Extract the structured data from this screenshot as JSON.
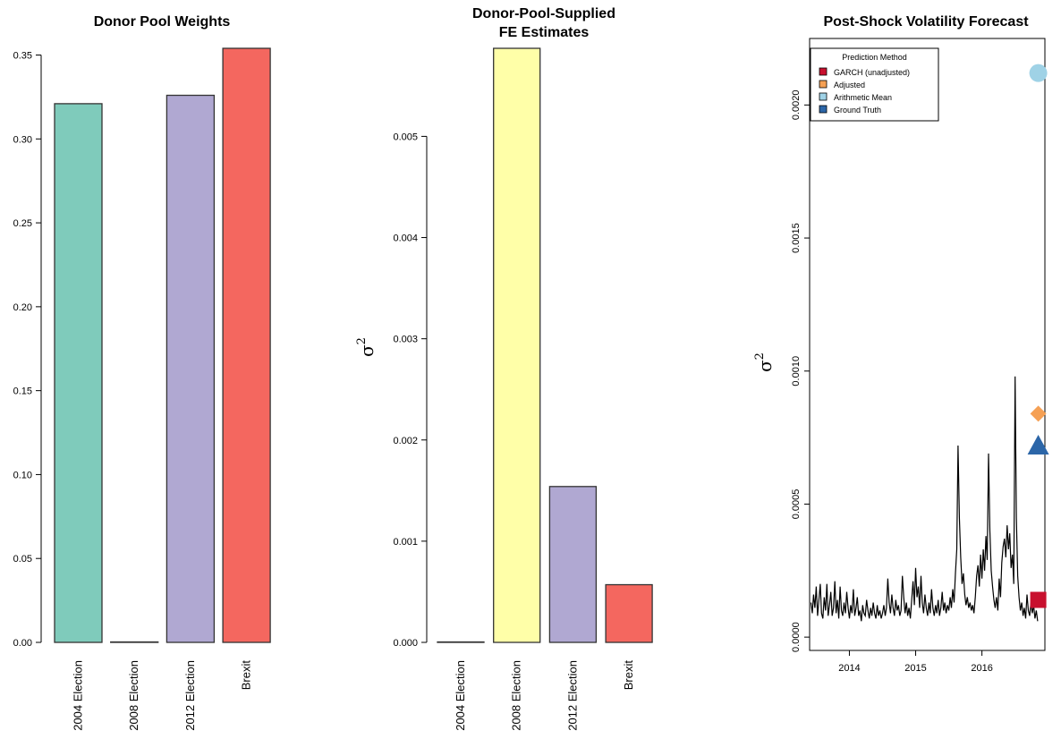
{
  "chart_data": [
    {
      "type": "bar",
      "title": "Donor Pool Weights",
      "categories": [
        "2004 Election",
        "2008 Election",
        "2012 Election",
        "Brexit"
      ],
      "values": [
        0.321,
        0.0,
        0.326,
        0.354
      ],
      "colors": [
        "#7fcbbb",
        "#ffffa8",
        "#b0a8d2",
        "#f4675f"
      ],
      "ylim": [
        0,
        0.354
      ],
      "yticks": [
        "0.00",
        "0.05",
        "0.10",
        "0.15",
        "0.20",
        "0.25",
        "0.30",
        "0.35"
      ],
      "xlabel": "",
      "ylabel": ""
    },
    {
      "type": "bar",
      "title_lines": [
        "Donor-Pool-Supplied",
        "FE Estimates"
      ],
      "categories": [
        "2004 Election",
        "2008 Election",
        "2012 Election",
        "Brexit"
      ],
      "values": [
        0.0,
        0.00587,
        0.00154,
        0.00057
      ],
      "colors": [
        "#7fcbbb",
        "#ffffa8",
        "#b0a8d2",
        "#f4675f"
      ],
      "ylim": [
        0,
        0.00587
      ],
      "yticks": [
        "0.000",
        "0.001",
        "0.002",
        "0.003",
        "0.004",
        "0.005"
      ],
      "ylabel": "σ",
      "ylabel_sup": "2"
    },
    {
      "type": "line",
      "title": "Post-Shock Volatility Forecast",
      "ylabel": "σ",
      "ylabel_sup": "2",
      "xticks": [
        "2014",
        "2015",
        "2016"
      ],
      "yticks": [
        "0.0000",
        "0.0005",
        "0.0010",
        "0.0015",
        "0.0020"
      ],
      "xlim": [
        2013.4,
        2016.95
      ],
      "ylim": [
        -5e-05,
        0.00225
      ],
      "series": [
        {
          "style": "line",
          "color": "#000000",
          "points": [
            [
              2013.42,
              0.00013
            ],
            [
              2013.44,
              9e-05
            ],
            [
              2013.46,
              0.00016
            ],
            [
              2013.48,
              0.00011
            ],
            [
              2013.5,
              0.00019
            ],
            [
              2013.52,
              8e-05
            ],
            [
              2013.54,
              0.00014
            ],
            [
              2013.56,
              0.0002
            ],
            [
              2013.58,
              9e-05
            ],
            [
              2013.6,
              7e-05
            ],
            [
              2013.62,
              0.00015
            ],
            [
              2013.64,
              0.0001
            ],
            [
              2013.66,
              0.0002
            ],
            [
              2013.68,
              8e-05
            ],
            [
              2013.7,
              0.00012
            ],
            [
              2013.72,
              0.00017
            ],
            [
              2013.74,
              8e-05
            ],
            [
              2013.76,
              0.00011
            ],
            [
              2013.78,
              0.00021
            ],
            [
              2013.8,
              9e-05
            ],
            [
              2013.82,
              0.00014
            ],
            [
              2013.84,
              7e-05
            ],
            [
              2013.86,
              0.00019
            ],
            [
              2013.88,
              0.0001
            ],
            [
              2013.9,
              8e-05
            ],
            [
              2013.92,
              0.00013
            ],
            [
              2013.94,
              9e-05
            ],
            [
              2013.96,
              0.00017
            ],
            [
              2013.98,
              0.00011
            ],
            [
              2014.0,
              7e-05
            ],
            [
              2014.02,
              0.00012
            ],
            [
              2014.04,
              9e-05
            ],
            [
              2014.06,
              0.00018
            ],
            [
              2014.08,
              8e-05
            ],
            [
              2014.1,
              0.00011
            ],
            [
              2014.12,
              0.00015
            ],
            [
              2014.14,
              8e-05
            ],
            [
              2014.16,
              0.0001
            ],
            [
              2014.18,
              6e-05
            ],
            [
              2014.2,
              0.00012
            ],
            [
              2014.22,
              9e-05
            ],
            [
              2014.24,
              8e-05
            ],
            [
              2014.26,
              0.00014
            ],
            [
              2014.28,
              0.0001
            ],
            [
              2014.3,
              7e-05
            ],
            [
              2014.32,
              0.00011
            ],
            [
              2014.34,
              8e-05
            ],
            [
              2014.36,
              0.00013
            ],
            [
              2014.38,
              9e-05
            ],
            [
              2014.4,
              7e-05
            ],
            [
              2014.42,
              0.00012
            ],
            [
              2014.44,
              8e-05
            ],
            [
              2014.46,
              0.0001
            ],
            [
              2014.48,
              7e-05
            ],
            [
              2014.5,
              9e-05
            ],
            [
              2014.52,
              0.00012
            ],
            [
              2014.54,
              8e-05
            ],
            [
              2014.56,
              0.00011
            ],
            [
              2014.58,
              0.00022
            ],
            [
              2014.6,
              0.00013
            ],
            [
              2014.62,
              9e-05
            ],
            [
              2014.64,
              0.00016
            ],
            [
              2014.66,
              0.00011
            ],
            [
              2014.68,
              8e-05
            ],
            [
              2014.7,
              0.00014
            ],
            [
              2014.72,
              0.0001
            ],
            [
              2014.74,
              0.00012
            ],
            [
              2014.76,
              8e-05
            ],
            [
              2014.78,
              0.0001
            ],
            [
              2014.8,
              0.00023
            ],
            [
              2014.82,
              0.00015
            ],
            [
              2014.84,
              9e-05
            ],
            [
              2014.86,
              0.00013
            ],
            [
              2014.88,
              8e-05
            ],
            [
              2014.9,
              0.00011
            ],
            [
              2014.92,
              7e-05
            ],
            [
              2014.94,
              0.00014
            ],
            [
              2014.96,
              0.00021
            ],
            [
              2014.98,
              0.00012
            ],
            [
              2015.0,
              0.00026
            ],
            [
              2015.02,
              0.00015
            ],
            [
              2015.04,
              0.00019
            ],
            [
              2015.06,
              0.00011
            ],
            [
              2015.08,
              0.00023
            ],
            [
              2015.1,
              0.00013
            ],
            [
              2015.12,
              9e-05
            ],
            [
              2015.14,
              0.00016
            ],
            [
              2015.16,
              0.00011
            ],
            [
              2015.18,
              8e-05
            ],
            [
              2015.2,
              0.00013
            ],
            [
              2015.22,
              9e-05
            ],
            [
              2015.24,
              0.00018
            ],
            [
              2015.26,
              0.00011
            ],
            [
              2015.28,
              8e-05
            ],
            [
              2015.3,
              0.00012
            ],
            [
              2015.32,
              9e-05
            ],
            [
              2015.34,
              0.00014
            ],
            [
              2015.36,
              8e-05
            ],
            [
              2015.38,
              0.00011
            ],
            [
              2015.4,
              0.00017
            ],
            [
              2015.42,
              0.0001
            ],
            [
              2015.44,
              0.00013
            ],
            [
              2015.46,
              9e-05
            ],
            [
              2015.48,
              0.00012
            ],
            [
              2015.5,
              0.0001
            ],
            [
              2015.52,
              0.00015
            ],
            [
              2015.54,
              0.00011
            ],
            [
              2015.56,
              0.00018
            ],
            [
              2015.58,
              0.00013
            ],
            [
              2015.6,
              0.00024
            ],
            [
              2015.62,
              0.00033
            ],
            [
              2015.64,
              0.00072
            ],
            [
              2015.66,
              0.00045
            ],
            [
              2015.68,
              0.0003
            ],
            [
              2015.7,
              0.0002
            ],
            [
              2015.72,
              0.00024
            ],
            [
              2015.74,
              0.00016
            ],
            [
              2015.76,
              0.00012
            ],
            [
              2015.78,
              0.00015
            ],
            [
              2015.8,
              0.00011
            ],
            [
              2015.82,
              0.00013
            ],
            [
              2015.84,
              0.0001
            ],
            [
              2015.86,
              0.00012
            ],
            [
              2015.88,
              9e-05
            ],
            [
              2015.9,
              0.00015
            ],
            [
              2015.92,
              0.00023
            ],
            [
              2015.94,
              0.00027
            ],
            [
              2015.96,
              0.00019
            ],
            [
              2015.98,
              0.00031
            ],
            [
              2016.0,
              0.00022
            ],
            [
              2016.02,
              0.00033
            ],
            [
              2016.04,
              0.00025
            ],
            [
              2016.06,
              0.00038
            ],
            [
              2016.08,
              0.00029
            ],
            [
              2016.1,
              0.00069
            ],
            [
              2016.12,
              0.0004
            ],
            [
              2016.14,
              0.00025
            ],
            [
              2016.16,
              0.00019
            ],
            [
              2016.18,
              0.00014
            ],
            [
              2016.2,
              0.00011
            ],
            [
              2016.22,
              0.00015
            ],
            [
              2016.24,
              0.0001
            ],
            [
              2016.26,
              0.00022
            ],
            [
              2016.28,
              0.00015
            ],
            [
              2016.3,
              0.00028
            ],
            [
              2016.32,
              0.00034
            ],
            [
              2016.34,
              0.00037
            ],
            [
              2016.36,
              0.0003
            ],
            [
              2016.38,
              0.00042
            ],
            [
              2016.4,
              0.00033
            ],
            [
              2016.42,
              0.00039
            ],
            [
              2016.44,
              0.00026
            ],
            [
              2016.46,
              0.00031
            ],
            [
              2016.48,
              0.0002
            ],
            [
              2016.5,
              0.00098
            ],
            [
              2016.52,
              0.00045
            ],
            [
              2016.54,
              0.00023
            ],
            [
              2016.56,
              0.00015
            ],
            [
              2016.58,
              0.0001
            ],
            [
              2016.6,
              0.00013
            ],
            [
              2016.62,
              8e-05
            ],
            [
              2016.64,
              0.00011
            ],
            [
              2016.66,
              7e-05
            ],
            [
              2016.68,
              0.00016
            ],
            [
              2016.7,
              0.0001
            ],
            [
              2016.72,
              8e-05
            ],
            [
              2016.74,
              0.00013
            ],
            [
              2016.76,
              9e-05
            ],
            [
              2016.78,
              0.00012
            ],
            [
              2016.8,
              7e-05
            ],
            [
              2016.82,
              0.0001
            ],
            [
              2016.84,
              6e-05
            ]
          ]
        },
        {
          "name": "GARCH (unadjusted)",
          "style": "point",
          "shape": "square",
          "color": "#c8102e",
          "points": [
            [
              2016.85,
              0.00014
            ]
          ]
        },
        {
          "name": "Adjusted",
          "style": "point",
          "shape": "diamond",
          "color": "#f5a054",
          "points": [
            [
              2016.85,
              0.00084
            ]
          ]
        },
        {
          "name": "Arithmetic Mean",
          "style": "point",
          "shape": "circle",
          "color": "#9fd2e6",
          "points": [
            [
              2016.85,
              0.00212
            ]
          ]
        },
        {
          "name": "Ground Truth",
          "style": "point",
          "shape": "triangle",
          "color": "#2c66a8",
          "points": [
            [
              2016.85,
              0.00072
            ]
          ]
        }
      ],
      "legend": {
        "title": "Prediction Method",
        "placement": "top-left",
        "items": [
          {
            "label": "GARCH (unadjusted)",
            "color": "#c8102e"
          },
          {
            "label": "Adjusted",
            "color": "#f5a054"
          },
          {
            "label": "Arithmetic Mean",
            "color": "#9fd2e6"
          },
          {
            "label": "Ground Truth",
            "color": "#2c66a8"
          }
        ]
      }
    }
  ]
}
